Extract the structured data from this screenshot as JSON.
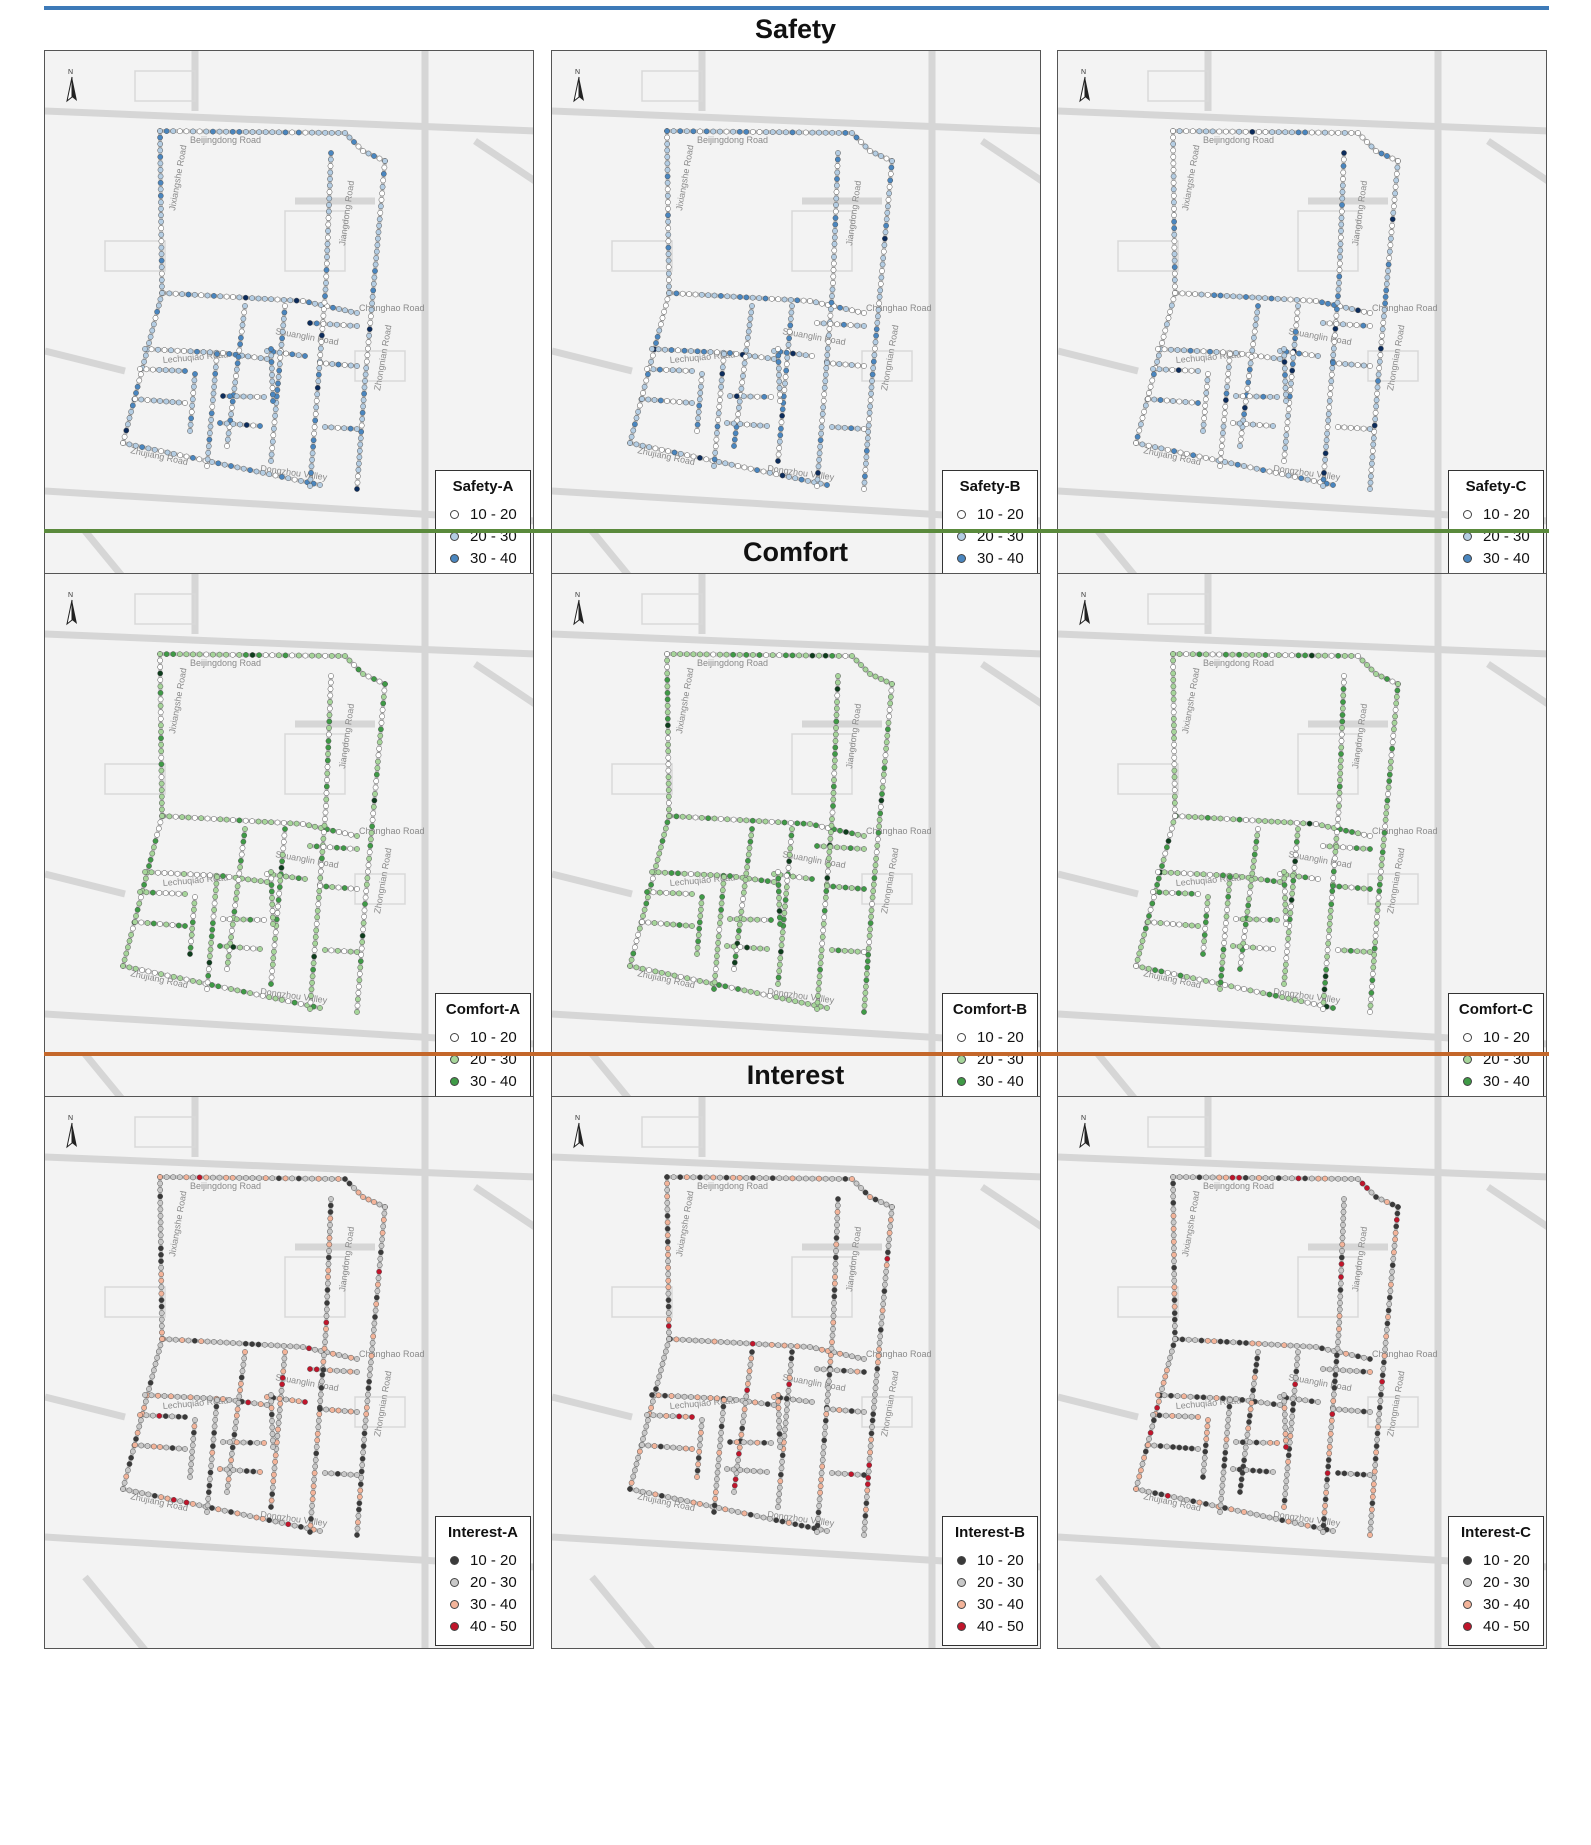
{
  "sections": [
    {
      "title": "Safety",
      "rule_color": "#3d7ab8",
      "ramp": [
        "#ffffff",
        "#b4cde3",
        "#4a86bf",
        "#0c2c5c"
      ],
      "panels": [
        {
          "legend_title": "Safety-A",
          "bias": 0.25
        },
        {
          "legend_title": "Safety-B",
          "bias": 0.15
        },
        {
          "legend_title": "Safety-C",
          "bias": 0.05
        }
      ]
    },
    {
      "title": "Comfort",
      "rule_color": "#5a8a3c",
      "ramp": [
        "#ffffff",
        "#a6d59a",
        "#3f9a46",
        "#0d3d1c"
      ],
      "panels": [
        {
          "legend_title": "Comfort-A",
          "bias": 0.15
        },
        {
          "legend_title": "Comfort-B",
          "bias": 0.35
        },
        {
          "legend_title": "Comfort-C",
          "bias": 0.2
        }
      ]
    },
    {
      "title": "Interest",
      "rule_color": "#c4672a",
      "ramp": [
        "#3a3a3a",
        "#c9c9c9",
        "#f3b49a",
        "#c0152b"
      ],
      "panels": [
        {
          "legend_title": "Interest-A",
          "bias": 0.3
        },
        {
          "legend_title": "Interest-B",
          "bias": 0.3
        },
        {
          "legend_title": "Interest-C",
          "bias": 0.2
        }
      ]
    }
  ],
  "legend_classes": [
    "10 - 20",
    "20 - 30",
    "30 - 40",
    "40 - 50"
  ],
  "north_label": "N",
  "road_labels": [
    "Beijingdong Road",
    "Jixiangshe Road",
    "Lechuqiao Road",
    "Zhujiang Road",
    "Dongzhou Valley",
    "Shuanglin Road",
    "Jiangdong Road",
    "Changhao Road",
    "Zhongnian Road"
  ],
  "icons": {
    "north_arrow": "north-arrow-icon"
  }
}
